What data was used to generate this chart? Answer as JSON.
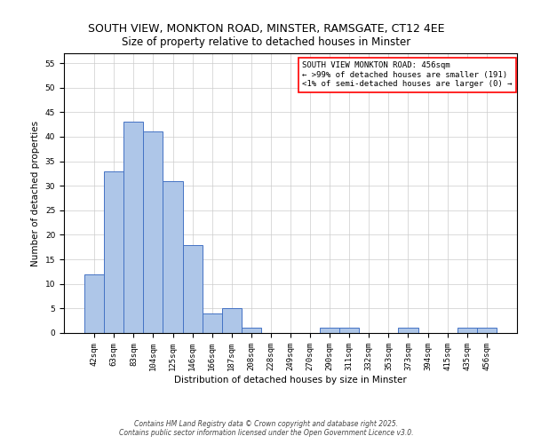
{
  "title": "SOUTH VIEW, MONKTON ROAD, MINSTER, RAMSGATE, CT12 4EE",
  "subtitle": "Size of property relative to detached houses in Minster",
  "xlabel": "Distribution of detached houses by size in Minster",
  "ylabel": "Number of detached properties",
  "categories": [
    "42sqm",
    "63sqm",
    "83sqm",
    "104sqm",
    "125sqm",
    "146sqm",
    "166sqm",
    "187sqm",
    "208sqm",
    "228sqm",
    "249sqm",
    "270sqm",
    "290sqm",
    "311sqm",
    "332sqm",
    "353sqm",
    "373sqm",
    "394sqm",
    "415sqm",
    "435sqm",
    "456sqm"
  ],
  "values": [
    12,
    33,
    43,
    41,
    31,
    18,
    4,
    5,
    1,
    0,
    0,
    0,
    1,
    1,
    0,
    0,
    1,
    0,
    0,
    1,
    1
  ],
  "bar_color": "#aec6e8",
  "bar_edge_color": "#4472c4",
  "ylim": [
    0,
    57
  ],
  "yticks": [
    0,
    5,
    10,
    15,
    20,
    25,
    30,
    35,
    40,
    45,
    50,
    55
  ],
  "annotation_box_text": "SOUTH VIEW MONKTON ROAD: 456sqm\n← >99% of detached houses are smaller (191)\n<1% of semi-detached houses are larger (0) →",
  "annotation_box_color": "#ff0000",
  "footer_line1": "Contains HM Land Registry data © Crown copyright and database right 2025.",
  "footer_line2": "Contains public sector information licensed under the Open Government Licence v3.0.",
  "title_fontsize": 9,
  "subtitle_fontsize": 8.5,
  "axis_label_fontsize": 7.5,
  "tick_fontsize": 6.5,
  "annotation_fontsize": 6.5
}
